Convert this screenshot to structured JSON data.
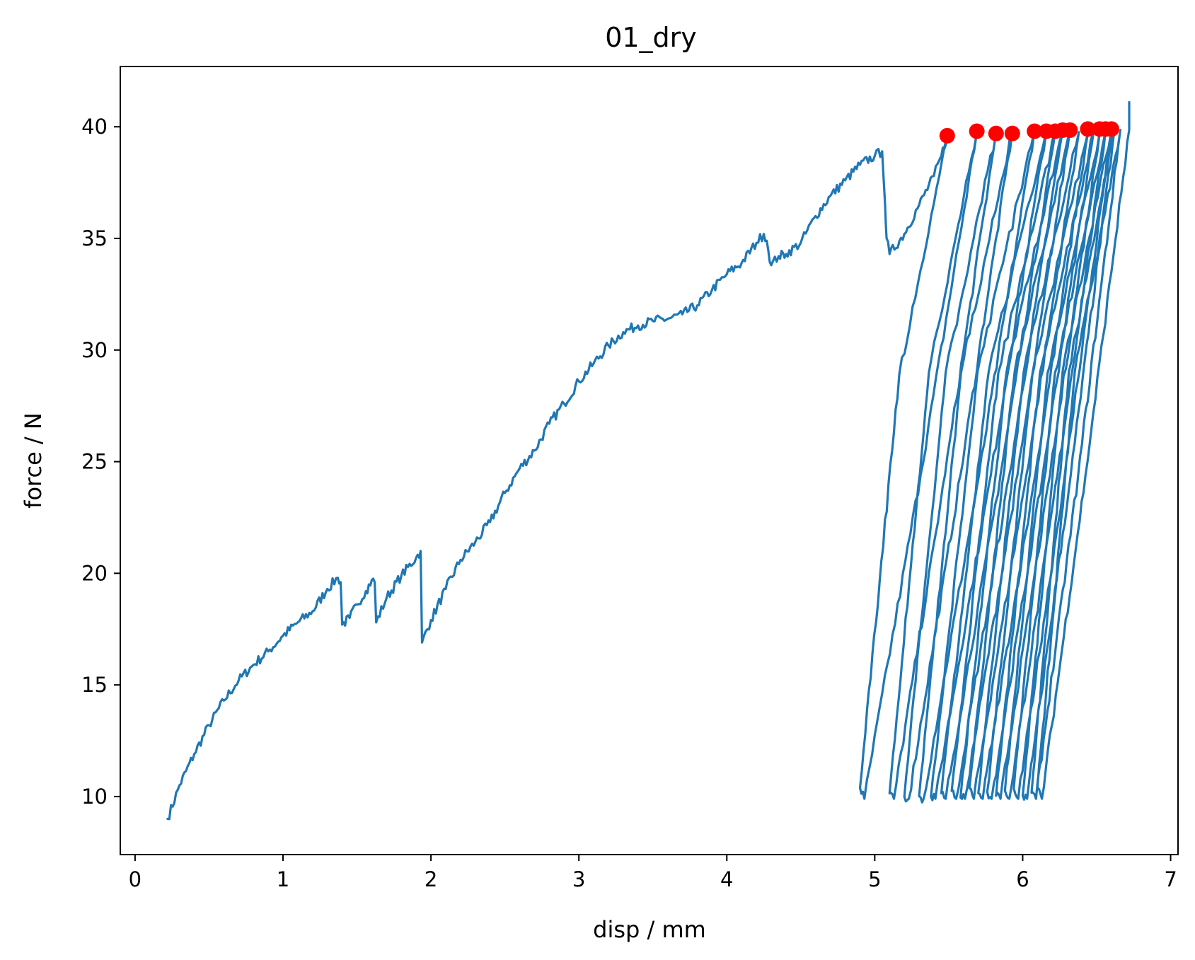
{
  "chart_data": {
    "type": "line",
    "title": "01_dry",
    "xlabel": "disp / mm",
    "ylabel": "force / N",
    "xlim": [
      -0.1,
      7.05
    ],
    "ylim": [
      7.4,
      42.7
    ],
    "xticks": [
      0,
      1,
      2,
      3,
      4,
      5,
      6,
      7
    ],
    "yticks": [
      10,
      15,
      20,
      25,
      30,
      35,
      40
    ],
    "grid": false,
    "colors": {
      "line": "#1f77b4",
      "peaks": "#ff0000"
    },
    "series": [
      {
        "type": "line",
        "initial_loading": [
          [
            0.22,
            9.0
          ],
          [
            0.3,
            10.5
          ],
          [
            0.4,
            11.9
          ],
          [
            0.5,
            13.2
          ],
          [
            0.6,
            14.3
          ],
          [
            0.7,
            15.2
          ],
          [
            0.8,
            15.9
          ],
          [
            0.9,
            16.5
          ],
          [
            1.0,
            17.2
          ],
          [
            1.1,
            17.8
          ],
          [
            1.2,
            18.3
          ],
          [
            1.3,
            19.3
          ],
          [
            1.37,
            19.8
          ],
          [
            1.39,
            19.6
          ],
          [
            1.4,
            17.7
          ],
          [
            1.45,
            18.0
          ],
          [
            1.5,
            18.6
          ],
          [
            1.56,
            19.2
          ],
          [
            1.6,
            19.7
          ],
          [
            1.62,
            19.6
          ],
          [
            1.63,
            17.8
          ],
          [
            1.7,
            18.9
          ],
          [
            1.8,
            19.9
          ],
          [
            1.9,
            20.7
          ],
          [
            1.93,
            21.0
          ],
          [
            1.94,
            16.9
          ],
          [
            2.0,
            17.9
          ],
          [
            2.1,
            19.3
          ],
          [
            2.2,
            20.6
          ],
          [
            2.3,
            21.4
          ],
          [
            2.4,
            22.3
          ],
          [
            2.5,
            23.6
          ],
          [
            2.6,
            24.7
          ],
          [
            2.7,
            25.5
          ],
          [
            2.8,
            26.7
          ],
          [
            2.9,
            27.6
          ],
          [
            3.0,
            28.6
          ],
          [
            3.1,
            29.4
          ],
          [
            3.2,
            30.2
          ],
          [
            3.3,
            30.8
          ],
          [
            3.4,
            31.1
          ],
          [
            3.5,
            31.3
          ],
          [
            3.6,
            31.4
          ],
          [
            3.7,
            31.6
          ],
          [
            3.8,
            32.0
          ],
          [
            3.9,
            32.7
          ],
          [
            4.0,
            33.4
          ],
          [
            4.1,
            33.9
          ],
          [
            4.2,
            34.8
          ],
          [
            4.25,
            35.2
          ],
          [
            4.27,
            34.9
          ],
          [
            4.3,
            33.8
          ],
          [
            4.35,
            34.2
          ],
          [
            4.4,
            34.3
          ],
          [
            4.5,
            34.8
          ],
          [
            4.6,
            36.0
          ],
          [
            4.7,
            36.9
          ],
          [
            4.8,
            37.6
          ],
          [
            4.9,
            38.3
          ],
          [
            5.0,
            38.7
          ],
          [
            5.05,
            38.9
          ],
          [
            5.07,
            36.5
          ],
          [
            5.08,
            35.0
          ],
          [
            5.1,
            34.3
          ],
          [
            5.2,
            35.2
          ],
          [
            5.3,
            36.5
          ],
          [
            5.4,
            37.8
          ],
          [
            5.45,
            38.7
          ],
          [
            5.49,
            39.6
          ]
        ],
        "unload_reload_cycles": [
          [
            5.49,
            4.9,
            5.69
          ],
          [
            5.69,
            5.1,
            5.82
          ],
          [
            5.82,
            5.2,
            5.93
          ],
          [
            5.93,
            5.3,
            6.08
          ],
          [
            6.08,
            5.38,
            6.16
          ],
          [
            6.16,
            5.45,
            6.22
          ],
          [
            6.22,
            5.52,
            6.27
          ],
          [
            6.27,
            5.58,
            6.32
          ],
          [
            6.32,
            5.64,
            6.38
          ],
          [
            6.38,
            5.7,
            6.44
          ],
          [
            6.44,
            5.76,
            6.48
          ],
          [
            6.48,
            5.82,
            6.52
          ],
          [
            6.52,
            5.88,
            6.56
          ],
          [
            6.56,
            5.94,
            6.6
          ],
          [
            6.6,
            6.0,
            6.62
          ],
          [
            6.62,
            6.06,
            6.66
          ],
          [
            6.66,
            6.1,
            6.72
          ]
        ],
        "cycle_force_range": [
          10.2,
          39.8
        ],
        "final_point": [
          6.72,
          41.1
        ]
      },
      {
        "type": "scatter",
        "peaks": [
          [
            5.49,
            39.6
          ],
          [
            5.69,
            39.8
          ],
          [
            5.82,
            39.7
          ],
          [
            5.93,
            39.7
          ],
          [
            6.08,
            39.8
          ],
          [
            6.16,
            39.8
          ],
          [
            6.22,
            39.8
          ],
          [
            6.27,
            39.85
          ],
          [
            6.32,
            39.85
          ],
          [
            6.44,
            39.9
          ],
          [
            6.52,
            39.9
          ],
          [
            6.56,
            39.9
          ],
          [
            6.6,
            39.9
          ]
        ]
      }
    ]
  }
}
